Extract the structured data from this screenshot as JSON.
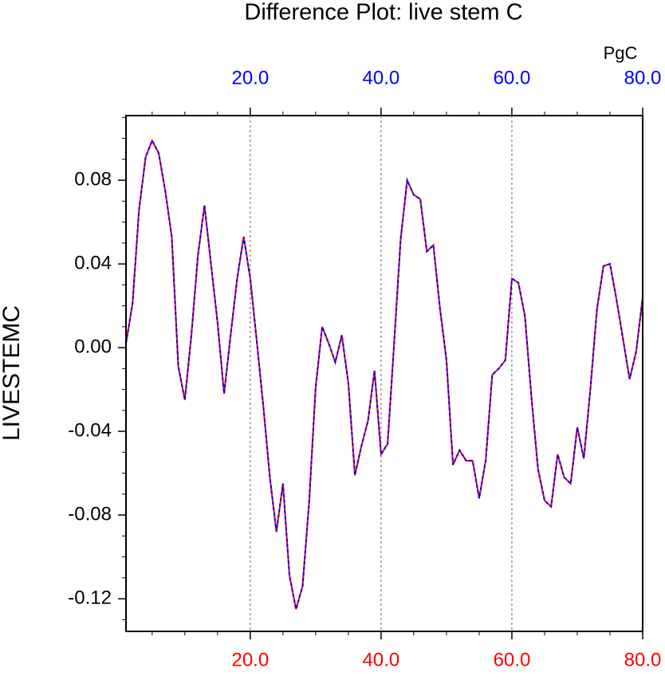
{
  "chart_data": {
    "type": "line",
    "title": "Difference Plot: live stem C",
    "units_label": "PgC",
    "ylabel": "LIVESTEMC",
    "x": [
      1,
      2,
      3,
      4,
      5,
      6,
      7,
      8,
      9,
      10,
      11,
      12,
      13,
      14,
      15,
      16,
      17,
      18,
      19,
      20,
      21,
      22,
      23,
      24,
      25,
      26,
      27,
      28,
      29,
      30,
      31,
      32,
      33,
      34,
      35,
      36,
      37,
      38,
      39,
      40,
      41,
      42,
      43,
      44,
      45,
      46,
      47,
      48,
      49,
      50,
      51,
      52,
      53,
      54,
      55,
      56,
      57,
      58,
      59,
      60,
      61,
      62,
      63,
      64,
      65,
      66,
      67,
      68,
      69,
      70,
      71,
      72,
      73,
      74,
      75,
      76,
      77,
      78,
      79,
      80
    ],
    "series": [
      {
        "color": "#ff0000",
        "dashed": false,
        "values": [
          0.002,
          0.021,
          0.066,
          0.091,
          0.099,
          0.093,
          0.075,
          0.053,
          -0.009,
          -0.025,
          0.006,
          0.044,
          0.068,
          0.04,
          0.012,
          -0.022,
          0.006,
          0.033,
          0.053,
          0.033,
          0.003,
          -0.028,
          -0.062,
          -0.088,
          -0.065,
          -0.109,
          -0.125,
          -0.114,
          -0.074,
          -0.019,
          0.01,
          0.002,
          -0.007,
          0.006,
          -0.017,
          -0.061,
          -0.047,
          -0.035,
          -0.011,
          -0.051,
          -0.046,
          0.002,
          0.052,
          0.08,
          0.073,
          0.071,
          0.046,
          0.049,
          0.019,
          -0.006,
          -0.056,
          -0.049,
          -0.054,
          -0.054,
          -0.072,
          -0.054,
          -0.013,
          -0.01,
          -0.006,
          0.033,
          0.031,
          0.015,
          -0.024,
          -0.058,
          -0.073,
          -0.076,
          -0.051,
          -0.062,
          -0.065,
          -0.038,
          -0.053,
          -0.02,
          0.018,
          0.039,
          0.04,
          0.023,
          0.004,
          -0.015,
          -0.002,
          0.024
        ]
      },
      {
        "color": "#0000ff",
        "dashed": true,
        "values": [
          0.002,
          0.021,
          0.066,
          0.091,
          0.099,
          0.093,
          0.075,
          0.053,
          -0.009,
          -0.025,
          0.006,
          0.044,
          0.068,
          0.04,
          0.012,
          -0.022,
          0.006,
          0.033,
          0.053,
          0.033,
          0.003,
          -0.028,
          -0.062,
          -0.088,
          -0.065,
          -0.109,
          -0.125,
          -0.114,
          -0.074,
          -0.019,
          0.01,
          0.002,
          -0.007,
          0.006,
          -0.017,
          -0.061,
          -0.047,
          -0.035,
          -0.011,
          -0.051,
          -0.046,
          0.002,
          0.052,
          0.08,
          0.073,
          0.071,
          0.046,
          0.049,
          0.019,
          -0.006,
          -0.056,
          -0.049,
          -0.054,
          -0.054,
          -0.072,
          -0.054,
          -0.013,
          -0.01,
          -0.006,
          0.033,
          0.031,
          0.015,
          -0.024,
          -0.058,
          -0.073,
          -0.076,
          -0.051,
          -0.062,
          -0.065,
          -0.038,
          -0.053,
          -0.02,
          0.018,
          0.039,
          0.04,
          0.023,
          0.004,
          -0.015,
          -0.002,
          0.024
        ]
      }
    ],
    "xlim": [
      1,
      80
    ],
    "ylim": [
      -0.1356,
      0.1109
    ],
    "xticks": [
      {
        "value": 20,
        "label": "20.0"
      },
      {
        "value": 40,
        "label": "40.0"
      },
      {
        "value": 60,
        "label": "60.0"
      },
      {
        "value": 80,
        "label": "80.0"
      }
    ],
    "yticks": [
      -0.12,
      -0.08,
      -0.04,
      {
        "value": 0,
        "label": "0.00"
      },
      0.04,
      0.08
    ],
    "bottom_axis_color": "#ff0000",
    "top_axis_color": "#0000ff",
    "grid": true
  }
}
